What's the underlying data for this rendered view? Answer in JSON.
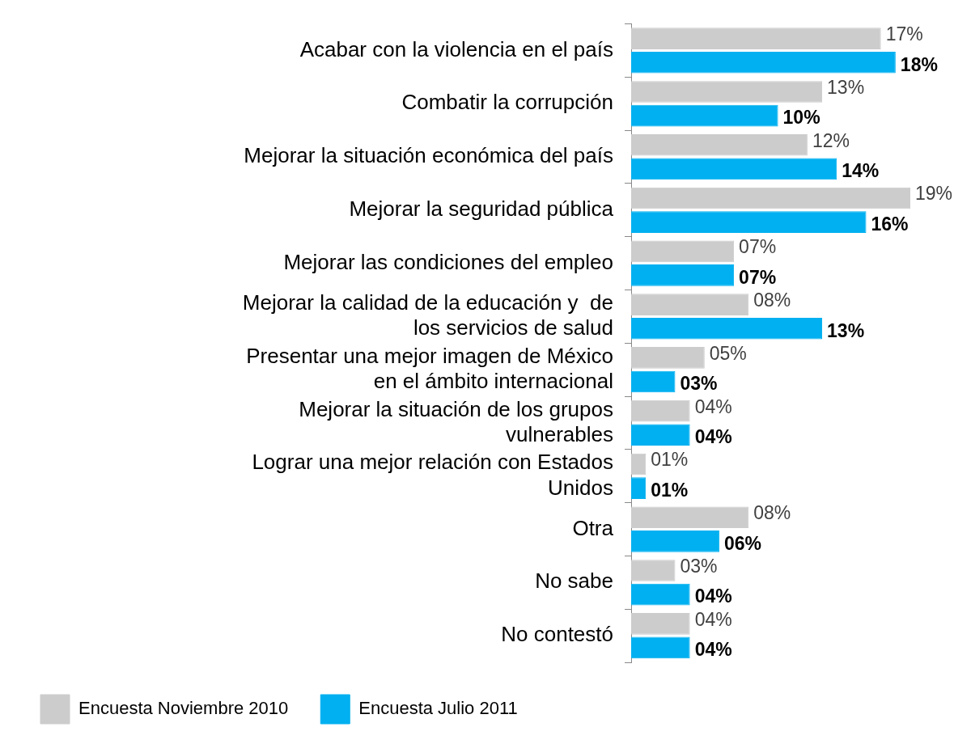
{
  "chart_data": {
    "type": "bar",
    "orientation": "horizontal",
    "categories": [
      "Acabar con la violencia en el país",
      "Combatir la corrupción",
      "Mejorar la situación económica del país",
      "Mejorar la seguridad pública",
      "Mejorar las condiciones del empleo",
      "Mejorar la calidad de la educación y  de los servicios de salud",
      "Presentar una mejor imagen de México en el ámbito internacional",
      "Mejorar la situación de los grupos vulnerables",
      "Lograr una mejor relación con Estados Unidos",
      "Otra",
      "No sabe",
      "No contestó"
    ],
    "series": [
      {
        "name": "Encuesta Noviembre 2010",
        "color": "#cccccc",
        "values": [
          17,
          13,
          12,
          19,
          7,
          8,
          5,
          4,
          1,
          8,
          3,
          4
        ],
        "value_labels": [
          "17%",
          "13%",
          "12%",
          "19%",
          "07%",
          "08%",
          "05%",
          "04%",
          "01%",
          "08%",
          "03%",
          "04%"
        ]
      },
      {
        "name": "Encuesta Julio 2011",
        "color": "#00b0f0",
        "values": [
          18,
          10,
          14,
          16,
          7,
          13,
          3,
          4,
          1,
          6,
          4,
          4
        ],
        "value_labels": [
          "18%",
          "10%",
          "14%",
          "16%",
          "07%",
          "13%",
          "03%",
          "04%",
          "01%",
          "06%",
          "04%",
          "04%"
        ]
      }
    ],
    "legend": "bottom left",
    "grid": false
  }
}
